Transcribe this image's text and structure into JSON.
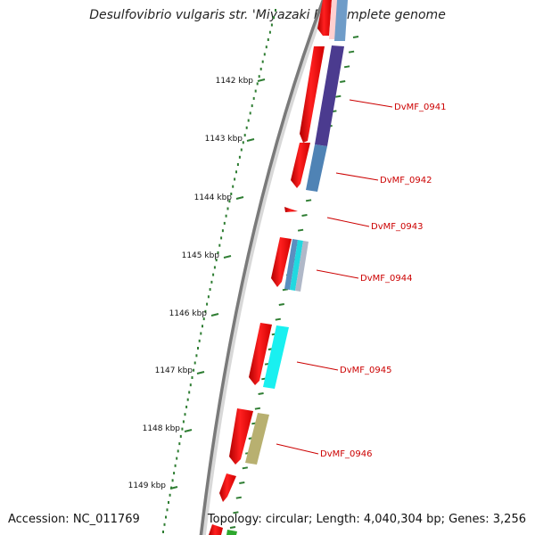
{
  "title": "Desulfovibrio vulgaris str. 'Miyazaki F', complete genome",
  "accession": "Accession: NC_011769",
  "summary": "Topology: circular; Length: 4,040,304 bp; Genes: 3,256",
  "colors": {
    "backbone": "#8a8a8a",
    "cds": "#ff1a1a",
    "gene_label": "#cc0000",
    "tick": "#2e7d32",
    "purple": "#4b3b8f",
    "steelblue": "#4f83b5",
    "cyan": "#19f0f0",
    "khaki": "#b8b070",
    "green": "#2ea82e"
  },
  "scale_labels": [
    "1142 kbp",
    "1143 kbp",
    "1144 kbp",
    "1145 kbp",
    "1146 kbp",
    "1147 kbp",
    "1148 kbp",
    "1149 kbp"
  ],
  "gene_labels": [
    "DvMF_0941",
    "DvMF_0942",
    "DvMF_0943",
    "DvMF_0944",
    "DvMF_0945",
    "DvMF_0946"
  ]
}
